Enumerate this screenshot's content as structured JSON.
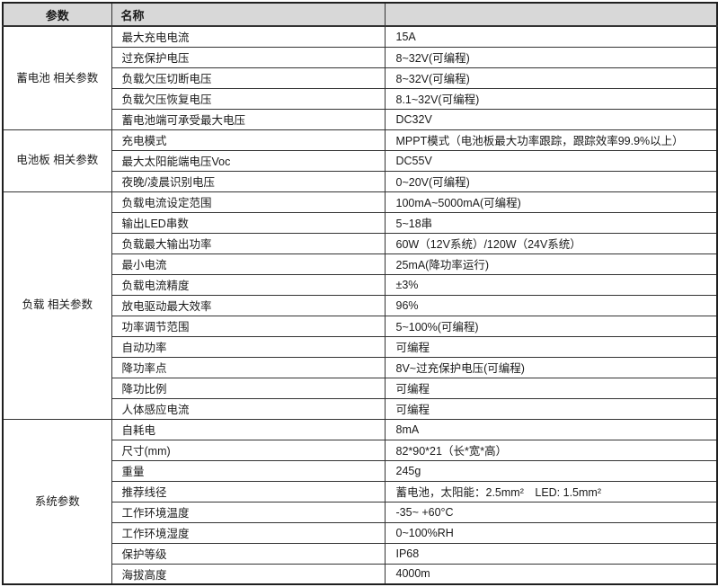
{
  "header": {
    "param": "参数",
    "name": "名称"
  },
  "colors": {
    "header_bg": "#d8d8d8",
    "border": "#333333",
    "outer_border": "#1f1f1f",
    "text": "#1a1a1a"
  },
  "sections": [
    {
      "category": "蓄电池\n相关参数",
      "rows": [
        {
          "name": "最大充电电流",
          "value": "15A"
        },
        {
          "name": "过充保护电压",
          "value": "8~32V(可编程)"
        },
        {
          "name": "负载欠压切断电压",
          "value": "8~32V(可编程)"
        },
        {
          "name": "负载欠压恢复电压",
          "value": "8.1~32V(可编程)"
        },
        {
          "name": "蓄电池端可承受最大电压",
          "value": "DC32V"
        }
      ]
    },
    {
      "category": "电池板\n相关参数",
      "rows": [
        {
          "name": "充电模式",
          "value": "MPPT模式（电池板最大功率跟踪，跟踪效率99.9%以上）"
        },
        {
          "name": "最大太阳能端电压Voc",
          "value": "DC55V"
        },
        {
          "name": "夜晚/凌晨识别电压",
          "value": "0~20V(可编程)"
        }
      ]
    },
    {
      "category": "负载\n相关参数",
      "rows": [
        {
          "name": "负载电流设定范围",
          "value": "100mA~5000mA(可编程)"
        },
        {
          "name": "输出LED串数",
          "value": "5~18串"
        },
        {
          "name": "负载最大输出功率",
          "value": "60W（12V系统）/120W（24V系统）"
        },
        {
          "name": "最小电流",
          "value": "25mA(降功率运行)"
        },
        {
          "name": "负载电流精度",
          "value": "±3%"
        },
        {
          "name": "放电驱动最大效率",
          "value": "96%"
        },
        {
          "name": "功率调节范围",
          "value": "5~100%(可编程)"
        },
        {
          "name": "自动功率",
          "value": "可编程"
        },
        {
          "name": "降功率点",
          "value": "8V~过充保护电压(可编程)"
        },
        {
          "name": "降功比例",
          "value": "可编程"
        },
        {
          "name": "人体感应电流",
          "value": "可编程"
        }
      ]
    },
    {
      "category": "系统参数",
      "rows": [
        {
          "name": "自耗电",
          "value": "8mA"
        },
        {
          "name": "尺寸(mm)",
          "value": "82*90*21（长*宽*高）"
        },
        {
          "name": "重量",
          "value": "245g"
        },
        {
          "name": "推荐线径",
          "value": "蓄电池，太阳能：2.5mm²　LED: 1.5mm²"
        },
        {
          "name": "工作环境温度",
          "value": "-35~ +60°C"
        },
        {
          "name": "工作环境湿度",
          "value": "0~100%RH"
        },
        {
          "name": "保护等级",
          "value": "IP68"
        },
        {
          "name": "海拔高度",
          "value": "4000m"
        }
      ]
    }
  ]
}
